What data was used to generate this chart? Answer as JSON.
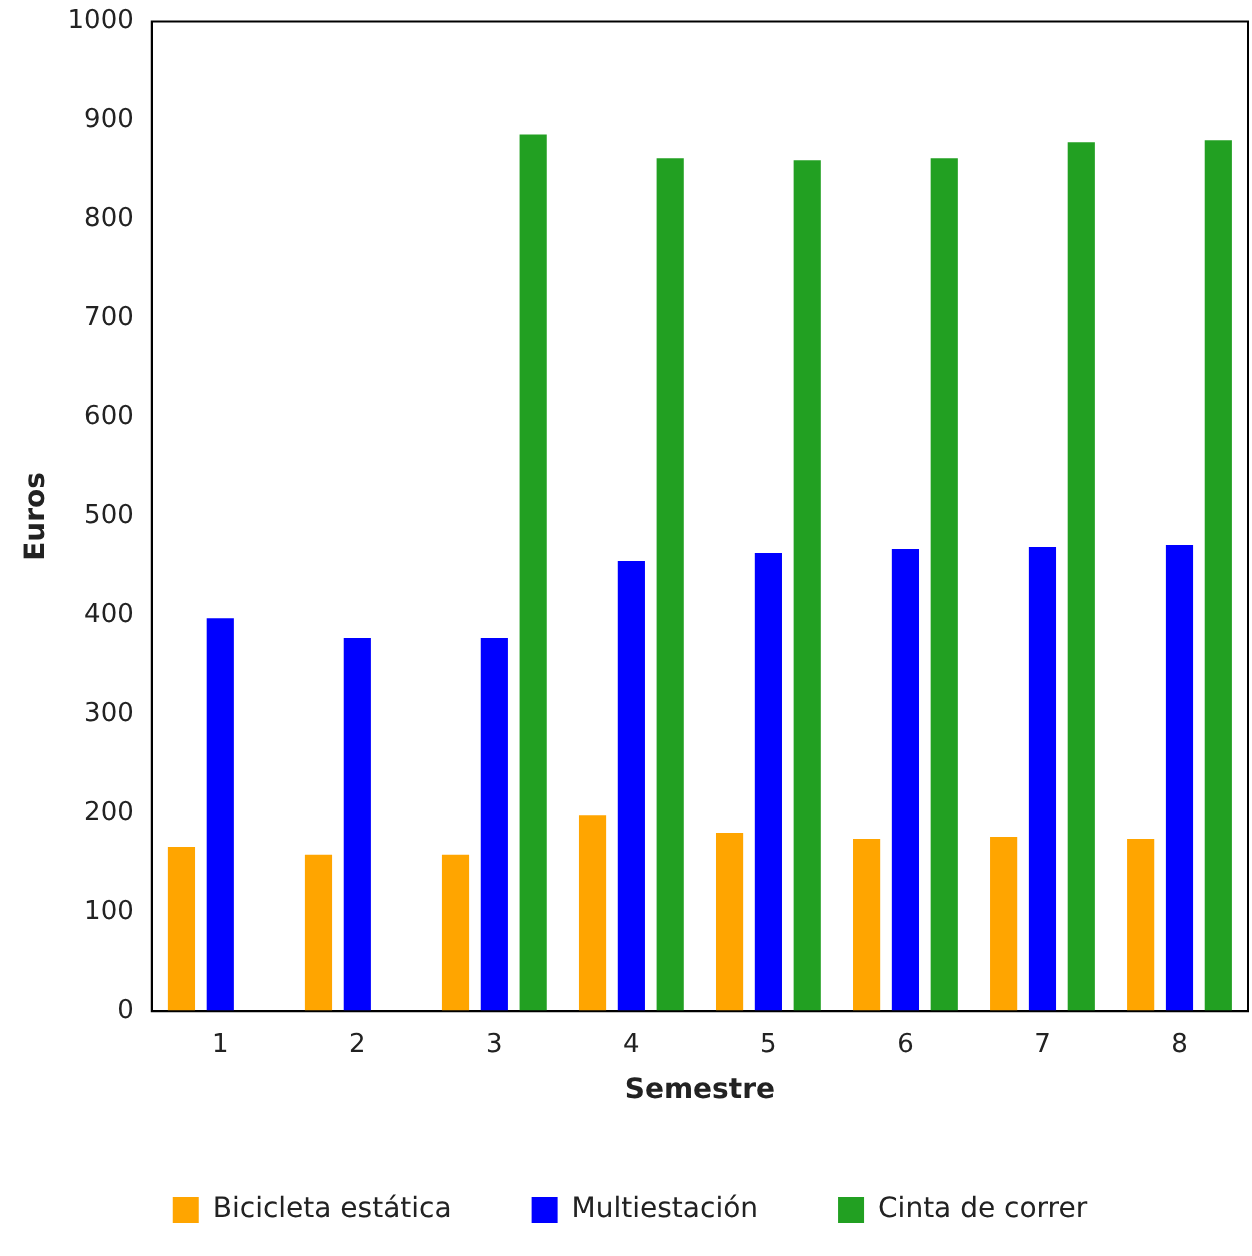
{
  "chart_data": {
    "type": "bar",
    "xlabel": "Semestre",
    "ylabel": "Euros",
    "categories": [
      "1",
      "2",
      "3",
      "4",
      "5",
      "6",
      "7",
      "8"
    ],
    "series": [
      {
        "name": "Bicicleta estática",
        "color": "#ffa500",
        "values": [
          166,
          158,
          158,
          198,
          180,
          174,
          176,
          174
        ]
      },
      {
        "name": "Multiestación",
        "color": "#0000ff",
        "values": [
          397,
          377,
          377,
          455,
          463,
          467,
          469,
          471
        ]
      },
      {
        "name": "Cinta de correr",
        "color": "#22a022",
        "values": [
          null,
          null,
          886,
          862,
          860,
          862,
          878,
          880
        ]
      }
    ],
    "ylim": [
      0,
      1000
    ],
    "yticks": [
      0,
      100,
      200,
      300,
      400,
      500,
      600,
      700,
      800,
      900,
      1000
    ],
    "grid": false,
    "legend": "bottom"
  }
}
